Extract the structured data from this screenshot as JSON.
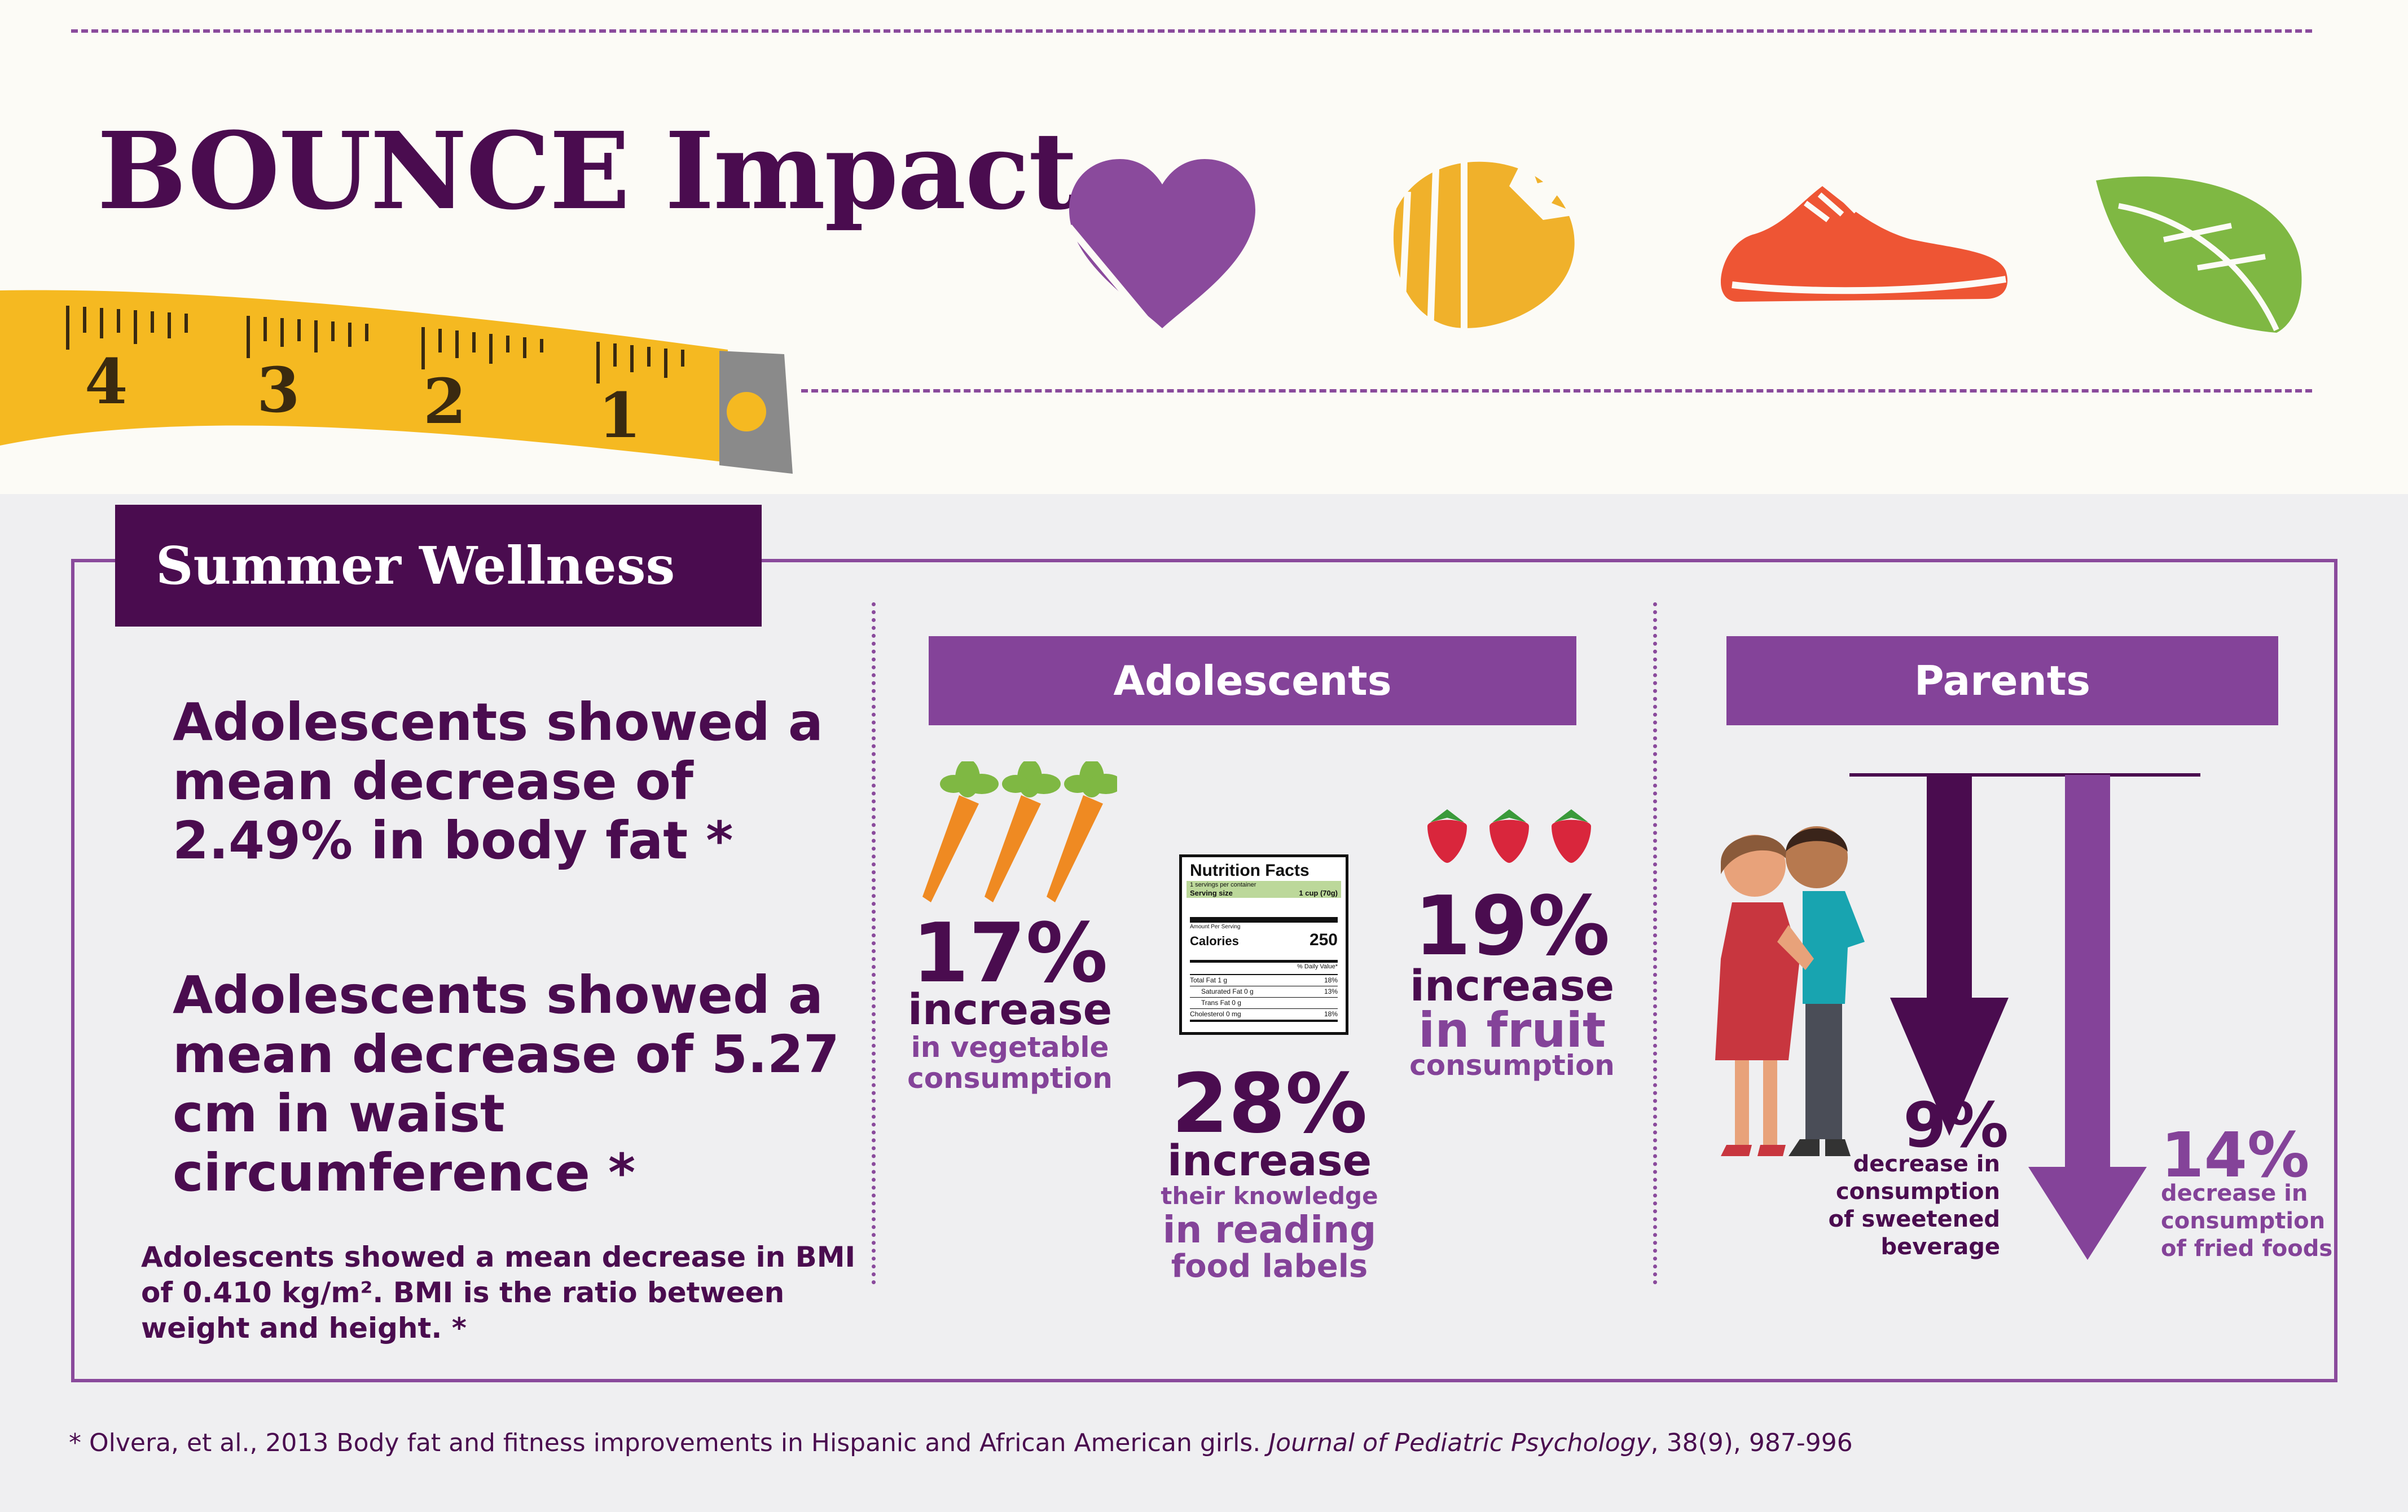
{
  "title": "BOUNCE Impact",
  "icons": [
    "heart-icon",
    "strawberry-icon",
    "sneaker-icon",
    "leaf-icon",
    "measuring-tape-icon"
  ],
  "tape_numbers": [
    "4",
    "3",
    "2",
    "1"
  ],
  "colors": {
    "dark_purple": "#4a0c4f",
    "purple": "#844399",
    "heart": "#8a4a9c",
    "strawberry": "#f0b12b",
    "shoe": "#ee5534",
    "leaf": "#7fb843",
    "tape": "#f5b921"
  },
  "section": {
    "title": "Summer Wellness",
    "stat_1": "Adolescents showed a mean decrease of 2.49% in body fat *",
    "stat_2": "Adolescents showed a mean decrease of 5.27 cm in waist circumference *",
    "stat_3": "Adolescents showed a mean decrease in BMI of 0.410 kg/m². BMI is the ratio between weight and height. *"
  },
  "adolescents": {
    "header": "Adolescents",
    "vegetable": {
      "percent": "17%",
      "label": "increase",
      "sub_1": "in vegetable",
      "sub_2": "consumption"
    },
    "labels": {
      "percent": "28%",
      "label": "increase",
      "sub_1": "their knowledge",
      "sub_2": "in reading",
      "sub_3": "food labels"
    },
    "fruit": {
      "percent": "19%",
      "label": "increase",
      "sub_1": "in fruit",
      "sub_2": "consumption"
    }
  },
  "nutrition_label": {
    "title": "Nutrition Facts",
    "servings": "1 servings per container",
    "serving_size_label": "Serving size",
    "serving_size_value": "1 cup (70g)",
    "amount_per_serving": "Amount Per Serving",
    "calories_label": "Calories",
    "calories_value": "250",
    "daily_value": "% Daily Value*",
    "rows": [
      {
        "label": "Total Fat 1 g",
        "value": "18%"
      },
      {
        "label": "Saturated Fat 0 g",
        "value": "13%"
      },
      {
        "label": "Trans Fat 0 g",
        "value": ""
      },
      {
        "label": "Cholesterol 0 mg",
        "value": "18%"
      }
    ]
  },
  "parents": {
    "header": "Parents",
    "sweetened": {
      "percent": "9%",
      "line_1": "decrease in",
      "line_2": "consumption",
      "line_3": "of sweetened",
      "line_4": "beverage"
    },
    "fried": {
      "percent": "14%",
      "line_1": "decrease in",
      "line_2": "consumption",
      "line_3": "of fried foods"
    }
  },
  "footnote": {
    "text": "* Olvera, et al., 2013  Body fat and fitness improvements in Hispanic and African American girls. ",
    "journal": "Journal of Pediatric Psychology",
    "rest": ", 38(9), 987-996"
  }
}
